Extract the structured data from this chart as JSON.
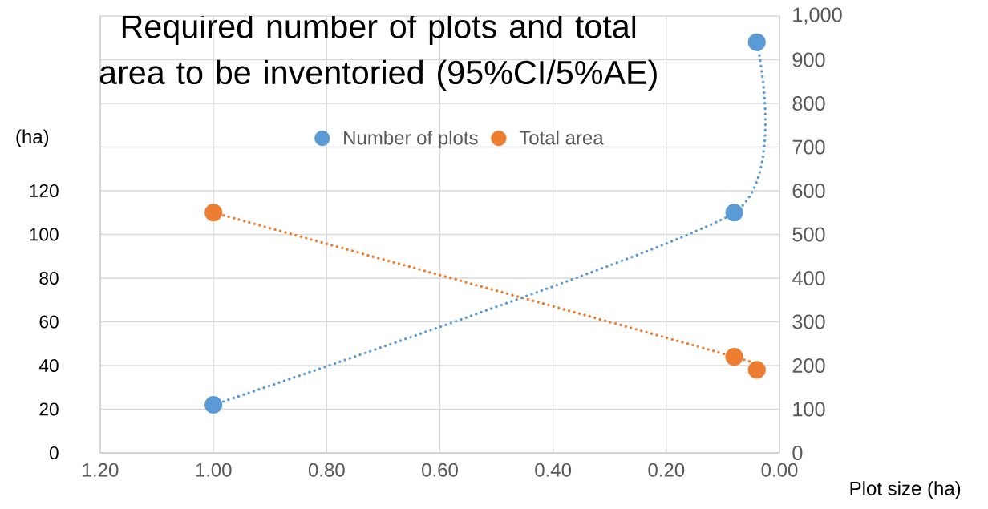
{
  "chart_data": {
    "type": "line",
    "title": "Required number of plots and total area to be inventoried (95%CI/5%AE)",
    "xlabel": "Plot size (ha)",
    "ylabel": "(ha)",
    "x": [
      1.0,
      0.08,
      0.04
    ],
    "series": [
      {
        "name": "Number of plots",
        "color": "#5b9bd5",
        "axis": "y2",
        "values": [
          110,
          550,
          940
        ]
      },
      {
        "name": "Total area",
        "color": "#ed7d31",
        "values": [
          110,
          44,
          38
        ]
      }
    ],
    "xlim": [
      1.2,
      0
    ],
    "xticks": [
      {
        "value": 1.2,
        "label": "1.20"
      },
      {
        "value": 1.0,
        "label": "1.00"
      },
      {
        "value": 0.8,
        "label": "0.80"
      },
      {
        "value": 0.6,
        "label": "0.60"
      },
      {
        "value": 0.4,
        "label": "0.40"
      },
      {
        "value": 0.2,
        "label": "0.20"
      },
      {
        "value": 0,
        "label": "0.00"
      }
    ],
    "ylim": [
      0,
      200
    ],
    "yticks": [
      0,
      20,
      40,
      60,
      80,
      100,
      120,
      {
        "value": 140,
        "label": null
      },
      {
        "value": 160,
        "label": null
      },
      {
        "value": 180,
        "label": null
      },
      {
        "value": 200,
        "label": null
      }
    ],
    "y2lim": [
      0,
      1000
    ],
    "y2ticks": [
      0,
      100,
      200,
      300,
      400,
      500,
      600,
      700,
      800,
      900,
      {
        "value": 1000,
        "label": "1,000"
      }
    ],
    "grid": true,
    "legend": "top",
    "marker": "circle",
    "line_style": "dotted"
  }
}
